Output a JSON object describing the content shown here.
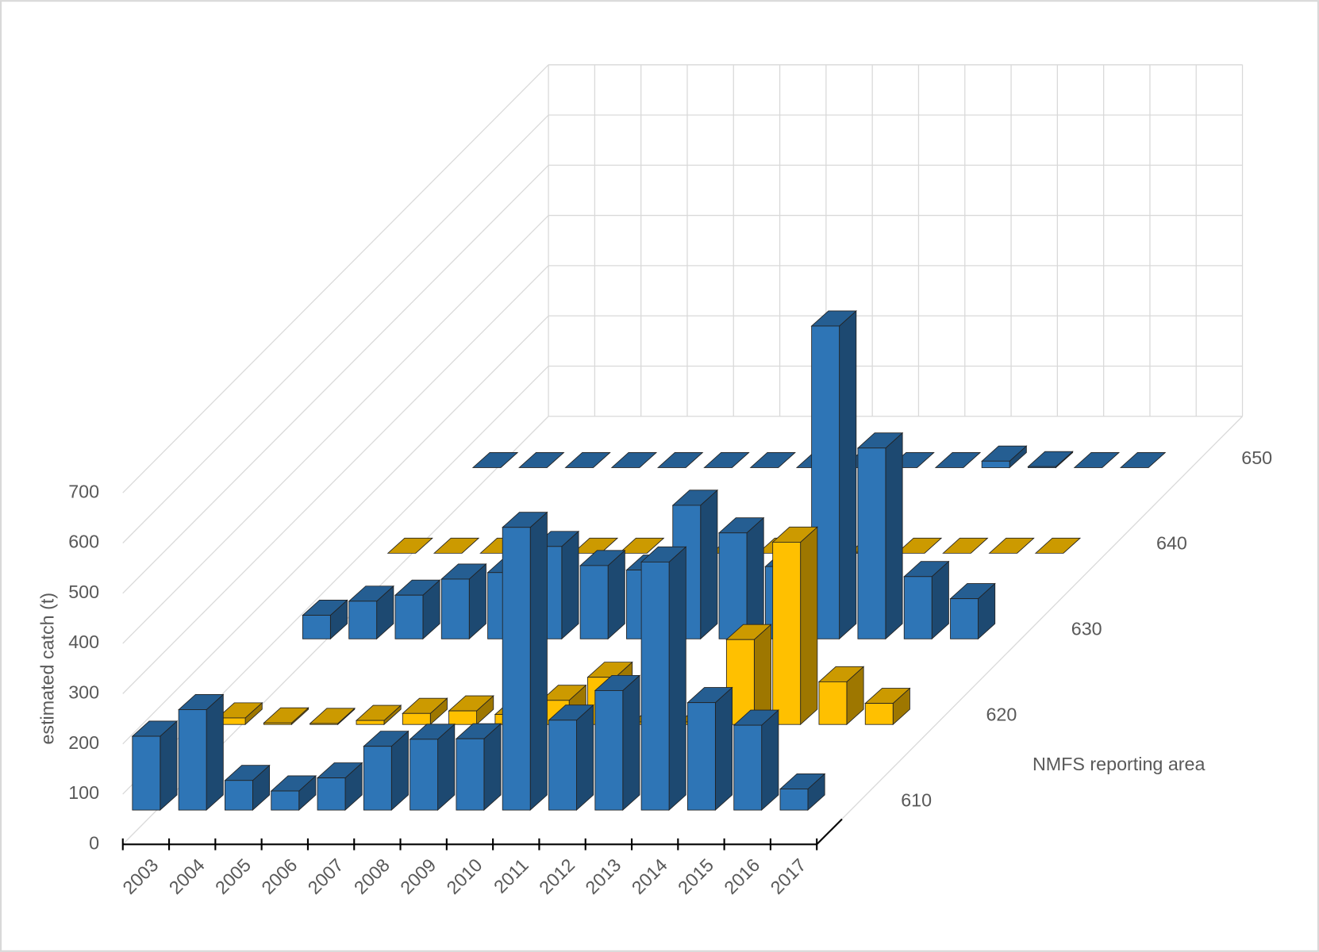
{
  "chart_data": {
    "type": "bar3d",
    "y_label": "estimated catch (t)",
    "z_label": "NMFS reporting area",
    "categories": [
      "2003",
      "2004",
      "2005",
      "2006",
      "2007",
      "2008",
      "2009",
      "2010",
      "2011",
      "2012",
      "2013",
      "2014",
      "2015",
      "2016",
      "2017"
    ],
    "series": [
      {
        "name": "610",
        "color": "#2e75b6",
        "values": [
          147,
          200,
          59,
          38,
          64,
          127,
          141,
          142,
          563,
          179,
          238,
          494,
          214,
          169,
          42
        ]
      },
      {
        "name": "620",
        "color": "#ffc000",
        "values": [
          13,
          3,
          2,
          8,
          22,
          27,
          20,
          48,
          94,
          5,
          5,
          169,
          363,
          85,
          42
        ]
      },
      {
        "name": "630",
        "color": "#2e75b6",
        "values": [
          47,
          75,
          87,
          119,
          132,
          184,
          146,
          137,
          266,
          211,
          144,
          623,
          380,
          124,
          80
        ]
      },
      {
        "name": "640",
        "color": "#ffc000",
        "values": [
          0,
          0,
          0,
          0,
          0,
          0,
          0,
          0,
          0,
          0,
          2,
          0,
          0,
          0,
          0
        ]
      },
      {
        "name": "650",
        "color": "#2e75b6",
        "values": [
          0,
          0,
          0,
          0,
          0,
          0,
          0,
          0,
          0,
          0,
          0,
          13,
          2,
          0,
          0
        ]
      }
    ],
    "ylim": [
      0,
      700
    ],
    "yticks": [
      0,
      100,
      200,
      300,
      400,
      500,
      600,
      700
    ],
    "grid": true
  }
}
